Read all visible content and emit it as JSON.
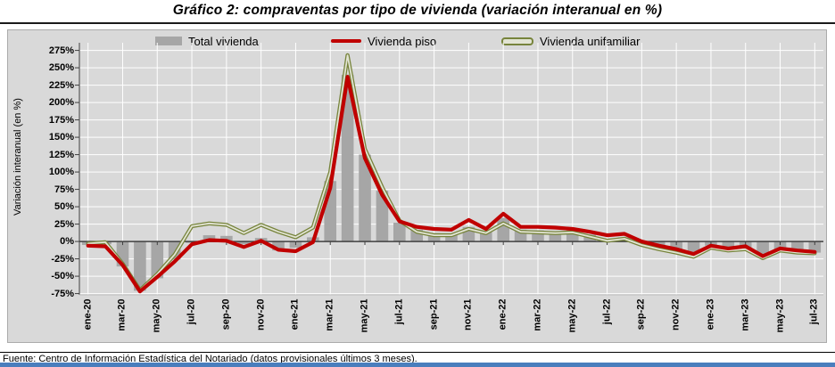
{
  "title": "Gráfico 2: compraventas por tipo de vivienda (variación interanual en %)",
  "footer": "Fuente: Centro de Información Estadística del Notariado (datos provisionales últimos 3 meses).",
  "colors": {
    "chart_background": "#d9d9d9",
    "gridline": "#ffffff",
    "bar": "#a6a6a6",
    "line_piso": "#c00000",
    "line_unifamiliar_outer": "#77843c",
    "line_unifamiliar_inner": "#e2e4d4",
    "axis": "#404040",
    "bottom_accent": "#4a7ebd"
  },
  "legend": [
    {
      "label": "Total vivienda",
      "swatch": "bar"
    },
    {
      "label": "Vivienda piso",
      "swatch": "line-red"
    },
    {
      "label": "Vivienda unifamiliar",
      "swatch": "line-olive"
    }
  ],
  "chart_data": {
    "type": "bar+line combo",
    "title": "Gráfico 2: compraventas por tipo de vivienda (variación interanual en %)",
    "xlabel": "",
    "ylabel": "Variación interanual (en %)",
    "ylim": [
      -75,
      275
    ],
    "ytick_step": 25,
    "ytick_suffix": "%",
    "grid": true,
    "legend_position": "top",
    "x": [
      "ene-20",
      "feb-20",
      "mar-20",
      "abr-20",
      "may-20",
      "jun-20",
      "jul-20",
      "ago-20",
      "sep-20",
      "oct-20",
      "nov-20",
      "dic-20",
      "ene-21",
      "feb-21",
      "mar-21",
      "abr-21",
      "may-21",
      "jun-21",
      "jul-21",
      "ago-21",
      "sep-21",
      "oct-21",
      "nov-21",
      "dic-21",
      "ene-22",
      "feb-22",
      "mar-22",
      "abr-22",
      "may-22",
      "jun-22",
      "jul-22",
      "ago-22",
      "sep-22",
      "oct-22",
      "nov-22",
      "dic-22",
      "ene-23",
      "feb-23",
      "mar-23",
      "abr-23",
      "may-23",
      "jun-23",
      "jul-23"
    ],
    "x_tick_every": 2,
    "series": [
      {
        "name": "Total vivienda",
        "type": "bar",
        "values": [
          -5,
          -4,
          -36,
          -71,
          -53,
          -26,
          -2,
          9,
          8,
          -4,
          5,
          -13,
          -9,
          6,
          87,
          240,
          125,
          73,
          27,
          17,
          12,
          10,
          21,
          14,
          34,
          17,
          16,
          14,
          16,
          10,
          4,
          6,
          -2,
          -8,
          -13,
          -20,
          -6,
          -11,
          -9,
          -21,
          -11,
          -14,
          -16
        ]
      },
      {
        "name": "Vivienda piso",
        "type": "line",
        "values": [
          -6,
          -7,
          -34,
          -72,
          -51,
          -29,
          -4,
          2,
          1,
          -8,
          1,
          -12,
          -14,
          -1,
          77,
          237,
          120,
          67,
          29,
          21,
          18,
          17,
          31,
          18,
          40,
          21,
          21,
          20,
          18,
          14,
          9,
          11,
          0,
          -6,
          -11,
          -18,
          -6,
          -10,
          -7,
          -21,
          -10,
          -13,
          -15
        ]
      },
      {
        "name": "Vivienda unifamiliar",
        "type": "line",
        "values": [
          -3,
          -1,
          -32,
          -70,
          -47,
          -19,
          22,
          26,
          24,
          12,
          24,
          14,
          6,
          20,
          100,
          268,
          133,
          78,
          30,
          14,
          9,
          9,
          18,
          12,
          26,
          14,
          13,
          12,
          13,
          7,
          1,
          4,
          -5,
          -11,
          -16,
          -22,
          -9,
          -13,
          -11,
          -24,
          -13,
          -16,
          -17
        ]
      }
    ]
  }
}
